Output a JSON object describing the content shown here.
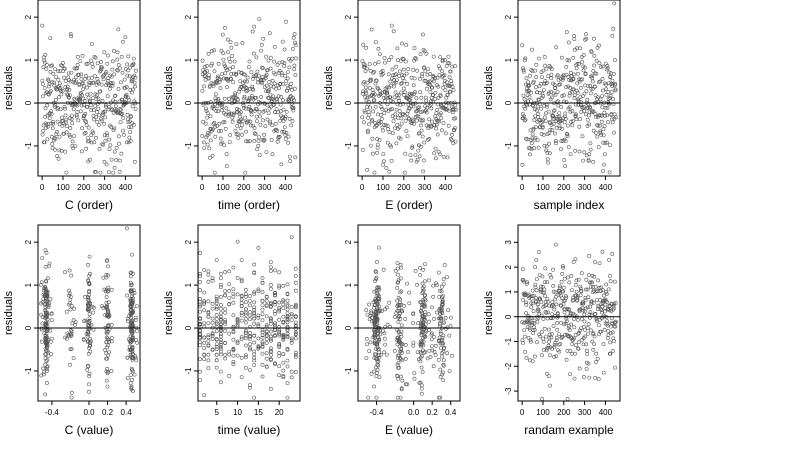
{
  "figure": {
    "ylabel": "residuals"
  },
  "chart_data": [
    {
      "type": "scatter",
      "xlabel": "C (order)",
      "ylabel": "residuals",
      "xlim": [
        -20,
        470
      ],
      "ylim": [
        -1.7,
        2.4
      ],
      "xticks": [
        0,
        100,
        200,
        300,
        400
      ],
      "xtick_labels": [
        "0",
        "100",
        "200",
        "300",
        "400"
      ],
      "yticks": [
        -1,
        0,
        1,
        2
      ],
      "ytick_labels": [
        "-1",
        "0",
        "1",
        "2"
      ],
      "reference_line_y": 0,
      "n_points": 450,
      "x_pattern": "uniform",
      "x_range": [
        0,
        450
      ],
      "residual_sd": 0.65,
      "point_color": "#555555"
    },
    {
      "type": "scatter",
      "xlabel": "time (order)",
      "ylabel": "residuals",
      "xlim": [
        -20,
        470
      ],
      "ylim": [
        -1.7,
        2.4
      ],
      "xticks": [
        0,
        100,
        200,
        300,
        400
      ],
      "xtick_labels": [
        "0",
        "100",
        "200",
        "300",
        "400"
      ],
      "yticks": [
        -1,
        0,
        1,
        2
      ],
      "ytick_labels": [
        "-1",
        "0",
        "1",
        "2"
      ],
      "reference_line_y": 0,
      "n_points": 450,
      "x_pattern": "uniform",
      "x_range": [
        0,
        450
      ],
      "residual_sd": 0.65,
      "point_color": "#555555"
    },
    {
      "type": "scatter",
      "xlabel": "E (order)",
      "ylabel": "residuals",
      "xlim": [
        -20,
        470
      ],
      "ylim": [
        -1.7,
        2.4
      ],
      "xticks": [
        0,
        100,
        200,
        300,
        400
      ],
      "xtick_labels": [
        "0",
        "100",
        "200",
        "300",
        "400"
      ],
      "yticks": [
        -1,
        0,
        1,
        2
      ],
      "ytick_labels": [
        "-1",
        "0",
        "1",
        "2"
      ],
      "reference_line_y": 0,
      "n_points": 450,
      "x_pattern": "uniform",
      "x_range": [
        0,
        450
      ],
      "residual_sd": 0.65,
      "point_color": "#555555"
    },
    {
      "type": "scatter",
      "xlabel": "sample index",
      "ylabel": "residuals",
      "xlim": [
        -20,
        470
      ],
      "ylim": [
        -1.7,
        2.4
      ],
      "xticks": [
        0,
        100,
        200,
        300,
        400
      ],
      "xtick_labels": [
        "0",
        "100",
        "200",
        "300",
        "400"
      ],
      "yticks": [
        -1,
        0,
        1,
        2
      ],
      "ytick_labels": [
        "-1",
        "0",
        "1",
        "2"
      ],
      "reference_line_y": 0,
      "n_points": 450,
      "x_pattern": "uniform",
      "x_range": [
        0,
        450
      ],
      "residual_sd": 0.65,
      "point_color": "#555555"
    },
    {
      "type": "scatter",
      "xlabel": "C (value)",
      "ylabel": "residuals",
      "xlim": [
        -0.55,
        0.55
      ],
      "ylim": [
        -1.7,
        2.4
      ],
      "xticks": [
        -0.4,
        0.0,
        0.2,
        0.4
      ],
      "xtick_labels": [
        "-0.4",
        "0.0",
        "0.2",
        "0.4"
      ],
      "yticks": [
        -1,
        0,
        1,
        2
      ],
      "ytick_labels": [
        "-1",
        "0",
        "1",
        "2"
      ],
      "reference_line_y": 0,
      "n_points": 450,
      "x_pattern": "clustered",
      "x_clusters": [
        -0.46,
        -0.2,
        0.0,
        0.2,
        0.46
      ],
      "cluster_weights": [
        0.3,
        0.1,
        0.15,
        0.15,
        0.3
      ],
      "cluster_jitter": 0.06,
      "residual_sd": 0.65,
      "point_color": "#555555"
    },
    {
      "type": "scatter",
      "xlabel": "time (value)",
      "ylabel": "residuals",
      "xlim": [
        0.5,
        25
      ],
      "ylim": [
        -1.7,
        2.4
      ],
      "xticks": [
        5,
        10,
        15,
        20
      ],
      "xtick_labels": [
        "5",
        "10",
        "15",
        "20"
      ],
      "yticks": [
        -1,
        0,
        1,
        2
      ],
      "ytick_labels": [
        "-1",
        "0",
        "1",
        "2"
      ],
      "reference_line_y": 0,
      "n_points": 450,
      "x_pattern": "integers",
      "x_range": [
        1,
        24
      ],
      "residual_sd": 0.65,
      "point_color": "#555555"
    },
    {
      "type": "scatter",
      "xlabel": "E (value)",
      "ylabel": "residuals",
      "xlim": [
        -0.6,
        0.5
      ],
      "ylim": [
        -1.7,
        2.4
      ],
      "xticks": [
        -0.4,
        0.0,
        0.2,
        0.4
      ],
      "xtick_labels": [
        "-0.4",
        "0.0",
        "0.2",
        "0.4"
      ],
      "yticks": [
        -1,
        0,
        1,
        2
      ],
      "ytick_labels": [
        "-1",
        "0",
        "1",
        "2"
      ],
      "reference_line_y": 0,
      "n_points": 450,
      "x_pattern": "clustered",
      "x_clusters": [
        -0.4,
        -0.15,
        0.1,
        0.3
      ],
      "cluster_weights": [
        0.35,
        0.2,
        0.25,
        0.2
      ],
      "cluster_jitter": 0.12,
      "residual_sd": 0.65,
      "point_color": "#555555"
    },
    {
      "type": "scatter",
      "xlabel": "randam example",
      "ylabel": "residuals",
      "xlim": [
        -20,
        470
      ],
      "ylim": [
        -3.4,
        3.7
      ],
      "xticks": [
        0,
        100,
        200,
        300,
        400
      ],
      "xtick_labels": [
        "0",
        "100",
        "200",
        "300",
        "400"
      ],
      "yticks": [
        -3,
        -2,
        -1,
        0,
        1,
        2,
        3
      ],
      "ytick_labels": [
        "-3",
        "-2",
        "-1",
        "0",
        "1",
        "2",
        "3"
      ],
      "reference_line_y": 0,
      "n_points": 450,
      "x_pattern": "uniform",
      "x_range": [
        0,
        450
      ],
      "residual_sd": 1.0,
      "point_color": "#555555"
    }
  ]
}
